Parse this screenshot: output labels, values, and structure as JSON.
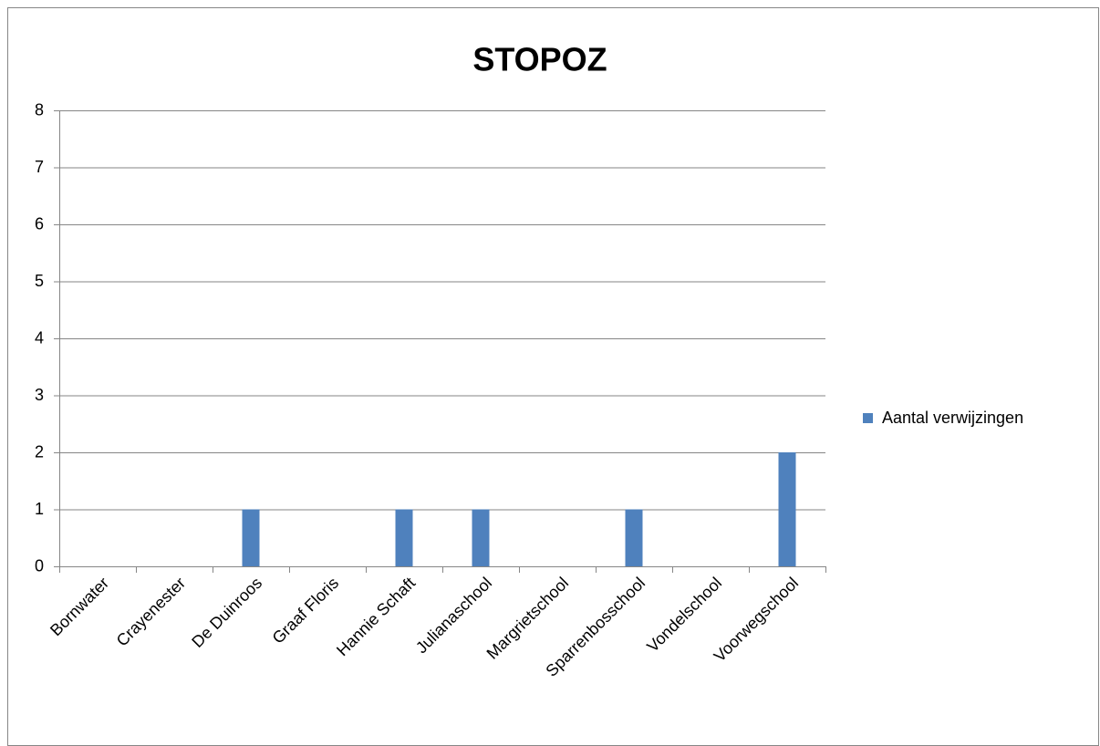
{
  "chart_data": {
    "type": "bar",
    "title": "STOPOZ",
    "categories": [
      "Bornwater",
      "Crayenester",
      "De Duinroos",
      "Graaf Floris",
      "Hannie Schaft",
      "Julianaschool",
      "Margrietschool",
      "Sparrenbosschool",
      "Vondelschool",
      "Voorwegschool"
    ],
    "series": [
      {
        "name": "Aantal verwijzingen",
        "color": "#4f81bd",
        "values": [
          0,
          0,
          1,
          0,
          1,
          1,
          0,
          1,
          0,
          2
        ]
      }
    ],
    "ylim": [
      0,
      8
    ],
    "yticks": [
      0,
      1,
      2,
      3,
      4,
      5,
      6,
      7,
      8
    ],
    "grid": true,
    "legend": "right"
  }
}
